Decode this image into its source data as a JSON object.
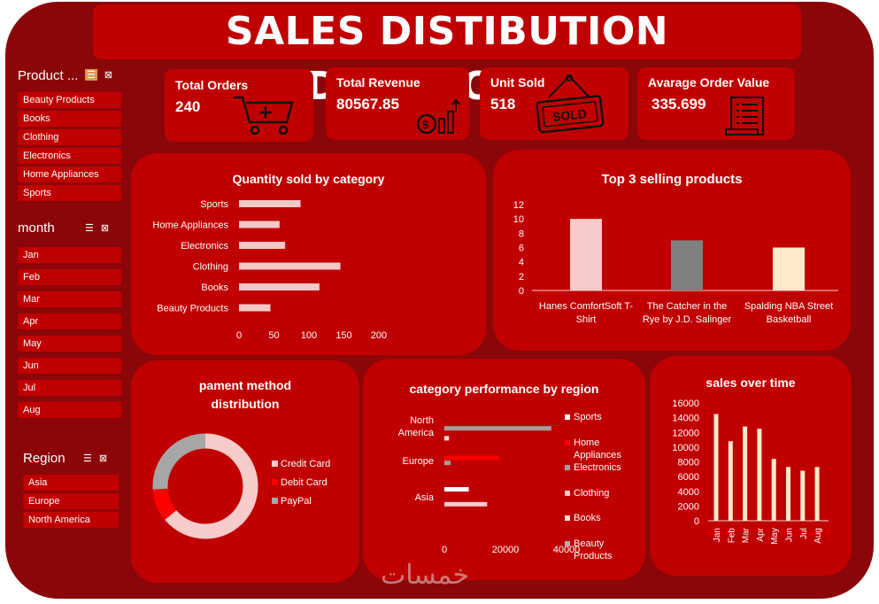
{
  "dashboard": {
    "title": "SALES DISTIBUTION DASHBOARD"
  },
  "slicers": {
    "product": {
      "header": "Product ...",
      "items": [
        "Beauty Products",
        "Books",
        "Clothing",
        "Electronics",
        "Home Appliances",
        "Sports"
      ]
    },
    "month": {
      "header": "month",
      "items": [
        "Jan",
        "Feb",
        "Mar",
        "Apr",
        "May",
        "Jun",
        "Jul",
        "Aug"
      ]
    },
    "region": {
      "header": "Region",
      "items": [
        "Asia",
        "Europe",
        "North America"
      ]
    }
  },
  "kpis": {
    "total_orders": {
      "label": "Total Orders",
      "value": "240",
      "icon": "shopping-cart-icon"
    },
    "total_revenue": {
      "label": "Total Revenue",
      "value": "80567.85",
      "icon": "revenue-growth-icon"
    },
    "unit_sold": {
      "label": "Unit Sold",
      "value": "518",
      "icon": "sold-sign-icon"
    },
    "avg_order_value": {
      "label": "Avarage Order Value",
      "value": "335.699",
      "icon": "receipt-icon"
    }
  },
  "colors": {
    "background": "#8b0608",
    "card": "#c00000",
    "light_bar": "#f4c7c8",
    "gray": "#808080",
    "red": "#ff0000",
    "cream": "#fce9c9",
    "pink": "#f8cbcb"
  },
  "chart_data": [
    {
      "id": "qty_by_category",
      "type": "bar",
      "orientation": "horizontal",
      "title": "Quantity sold by category",
      "categories": [
        "Sports",
        "Home Appliances",
        "Electronics",
        "Clothing",
        "Books",
        "Beauty Products"
      ],
      "values": [
        88,
        58,
        66,
        145,
        115,
        45
      ],
      "xlim": [
        0,
        200
      ],
      "xticks": [
        0,
        50,
        100,
        150,
        200
      ],
      "grid": false
    },
    {
      "id": "top3_products",
      "type": "bar",
      "title": "Top 3 selling products",
      "categories": [
        "Hanes ComfortSoft T-Shirt",
        "The Catcher in the Rye by J.D. Salinger",
        "Spalding NBA Street Basketball"
      ],
      "values": [
        10,
        7,
        6
      ],
      "colors": [
        "#f8cbcb",
        "#808080",
        "#fce9c9"
      ],
      "ylim": [
        0,
        12
      ],
      "yticks": [
        0,
        2,
        4,
        6,
        8,
        10,
        12
      ],
      "grid": false
    },
    {
      "id": "payment_method",
      "type": "pie",
      "variant": "donut",
      "title": "pament method distribution",
      "labels": [
        "Credit Card",
        "Debit Card",
        "PayPal"
      ],
      "values": [
        64,
        10,
        26
      ],
      "colors": [
        "#f8cbcb",
        "#ff0000",
        "#a6a6a6"
      ],
      "legend": "right"
    },
    {
      "id": "category_by_region",
      "type": "bar",
      "orientation": "horizontal",
      "title": "category performance by region",
      "categories": [
        "North America",
        "Europe",
        "Asia"
      ],
      "series": [
        {
          "name": "Sports",
          "values": [
            0,
            0,
            8000
          ],
          "color": "#ffffff"
        },
        {
          "name": "Home Appliances",
          "values": [
            0,
            18000,
            0
          ],
          "color": "#ff0000"
        },
        {
          "name": "Electronics",
          "values": [
            35000,
            2000,
            0
          ],
          "color": "#a0a0a0"
        },
        {
          "name": "Clothing",
          "values": [
            0,
            0,
            14000
          ],
          "color": "#f8cbcb"
        },
        {
          "name": "Books",
          "values": [
            1500,
            0,
            0
          ],
          "color": "#f4e1e1"
        },
        {
          "name": "Beauty Products",
          "values": [
            0,
            0,
            0
          ],
          "color": "#b0b0b0"
        }
      ],
      "xlim": [
        0,
        40000
      ],
      "xticks": [
        0,
        20000,
        40000
      ],
      "legend": "right"
    },
    {
      "id": "sales_over_time",
      "type": "bar",
      "title": "sales over time",
      "categories": [
        "Jan",
        "Feb",
        "Mar",
        "Apr",
        "May",
        "Jun",
        "Jul",
        "Aug"
      ],
      "values": [
        14500,
        10800,
        12800,
        12500,
        8400,
        7300,
        6800,
        7300
      ],
      "ylim": [
        0,
        16000
      ],
      "yticks": [
        0,
        2000,
        4000,
        6000,
        8000,
        10000,
        12000,
        14000,
        16000
      ],
      "grid": false
    }
  ],
  "watermark": "خمسات"
}
